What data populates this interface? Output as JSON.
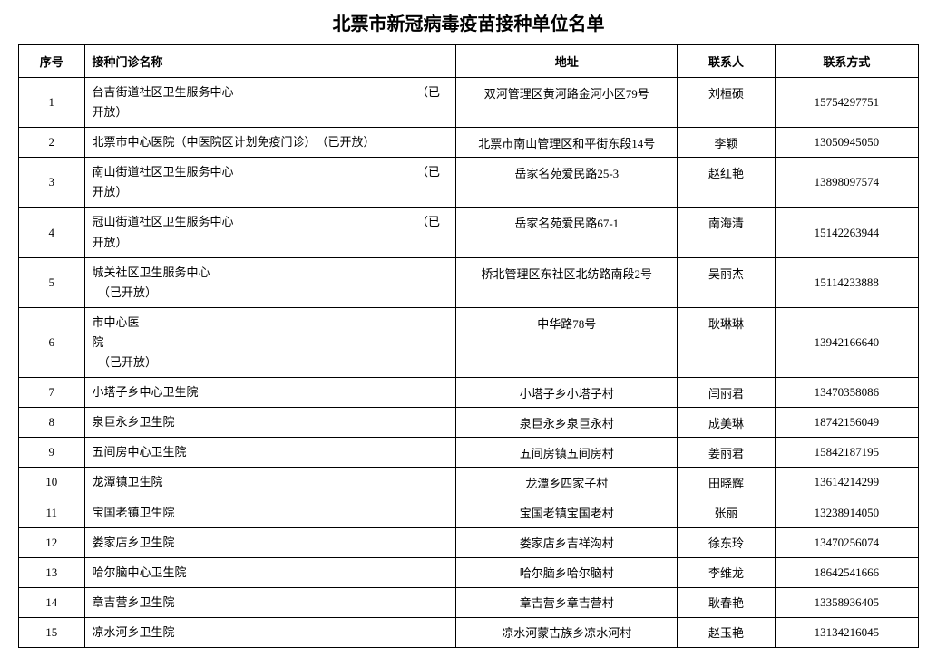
{
  "title": "北票市新冠病毒疫苗接种单位名单",
  "columns": [
    "序号",
    "接种门诊名称",
    "地址",
    "联系人",
    "联系方式"
  ],
  "rows": [
    {
      "seq": "1",
      "name": "台吉街道社区卫生服务中心　　　　　　　　　　　　　　　　（已开放）",
      "addr": "双河管理区黄河路金河小区79号",
      "contact": "刘桓硕",
      "phone": "15754297751"
    },
    {
      "seq": "2",
      "name": "北票市中心医院（中医院区计划免疫门诊）　（已开放）",
      "addr": "北票市南山管理区和平街东段14号",
      "contact": "李颖",
      "phone": "13050945050"
    },
    {
      "seq": "3",
      "name": "南山街道社区卫生服务中心　　　　　　　　　　　　　　　　（已开放）",
      "addr": "岳家名苑爱民路25-3",
      "contact": "赵红艳",
      "phone": "13898097574"
    },
    {
      "seq": "4",
      "name": "冠山街道社区卫生服务中心　　　　　　　　　　　　　　　　（已开放）",
      "addr": "岳家名苑爱民路67-1",
      "contact": "南海清",
      "phone": "15142263944"
    },
    {
      "seq": "5",
      "name": "城关社区卫生服务中心\n　（已开放）",
      "addr": "桥北管理区东社区北纺路南段2号",
      "contact": "吴丽杰",
      "phone": "15114233888"
    },
    {
      "seq": "6",
      "name": "市中心医\n院\n　（已开放）",
      "addr": "中华路78号",
      "contact": "耿琳琳",
      "phone": "13942166640"
    },
    {
      "seq": "7",
      "name": "小塔子乡中心卫生院",
      "addr": "小塔子乡小塔子村",
      "contact": "闫丽君",
      "phone": "13470358086"
    },
    {
      "seq": "8",
      "name": "泉巨永乡卫生院",
      "addr": "泉巨永乡泉巨永村",
      "contact": "成美琳",
      "phone": "18742156049"
    },
    {
      "seq": "9",
      "name": "五间房中心卫生院",
      "addr": "五间房镇五间房村",
      "contact": "姜丽君",
      "phone": "15842187195"
    },
    {
      "seq": "10",
      "name": "龙潭镇卫生院",
      "addr": "龙潭乡四家子村",
      "contact": "田晓辉",
      "phone": "13614214299"
    },
    {
      "seq": "11",
      "name": "宝国老镇卫生院",
      "addr": "宝国老镇宝国老村",
      "contact": "张丽",
      "phone": "13238914050"
    },
    {
      "seq": "12",
      "name": "娄家店乡卫生院",
      "addr": "娄家店乡吉祥沟村",
      "contact": "徐东玲",
      "phone": "13470256074"
    },
    {
      "seq": "13",
      "name": "哈尔脑中心卫生院",
      "addr": "哈尔脑乡哈尔脑村",
      "contact": "李维龙",
      "phone": "18642541666"
    },
    {
      "seq": "14",
      "name": "章吉营乡卫生院",
      "addr": "章吉营乡章吉营村",
      "contact": "耿春艳",
      "phone": "13358936405"
    },
    {
      "seq": "15",
      "name": "凉水河乡卫生院",
      "addr": "凉水河蒙古族乡凉水河村",
      "contact": "赵玉艳",
      "phone": "13134216045"
    }
  ]
}
